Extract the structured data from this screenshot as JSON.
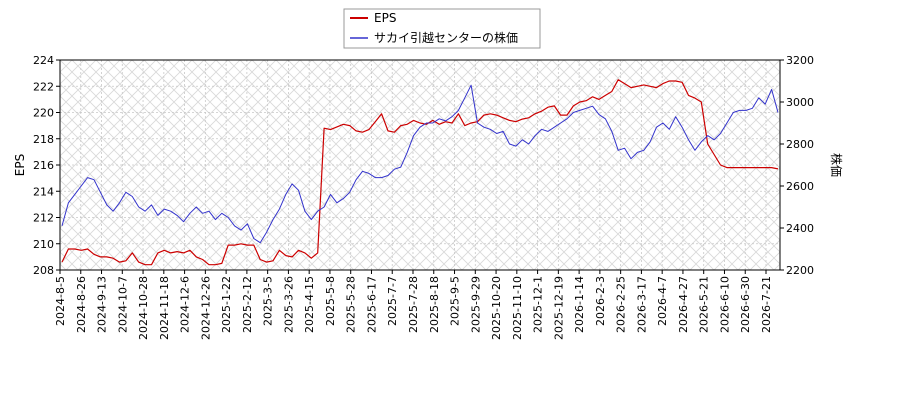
{
  "chart_data": {
    "type": "line",
    "title": "",
    "legend": {
      "placement": "top-center",
      "entries": [
        {
          "name": "EPS",
          "color": "#cc0000"
        },
        {
          "name": "サカイ引越センターの株価",
          "color": "#3333cc"
        }
      ]
    },
    "grid": true,
    "xlabel": "",
    "x_ticks": [
      "2024-8-5",
      "2024-8-26",
      "2024-9-13",
      "2024-10-7",
      "2024-10-28",
      "2024-11-18",
      "2024-12-6",
      "2024-12-26",
      "2025-1-22",
      "2025-2-12",
      "2025-3-5",
      "2025-3-26",
      "2025-4-15",
      "2025-5-8",
      "2025-5-28",
      "2025-6-17",
      "2025-7-7",
      "2025-7-28",
      "2025-8-18",
      "2025-9-5",
      "2025-9-29",
      "2025-10-20",
      "2025-11-10",
      "2025-12-1",
      "2025-12-19",
      "2026-1-14",
      "2026-2-3",
      "2026-2-25",
      "2026-3-17",
      "2026-4-7",
      "2026-4-27",
      "2026-5-21",
      "2026-6-10",
      "2026-6-30",
      "2026-7-21"
    ],
    "y_left": {
      "label": "EPS",
      "lim": [
        208,
        224
      ],
      "ticks": [
        208,
        210,
        212,
        214,
        216,
        218,
        220,
        222,
        224
      ]
    },
    "y_right": {
      "label": "株価",
      "lim": [
        2200,
        3200
      ],
      "ticks": [
        2200,
        2400,
        2600,
        2800,
        3000,
        3200
      ]
    },
    "series": [
      {
        "name": "EPS",
        "axis": "left",
        "color": "#cc0000",
        "values": [
          208.6,
          209.6,
          209.6,
          209.5,
          209.6,
          209.2,
          209.0,
          209.0,
          208.9,
          208.6,
          208.7,
          209.3,
          208.6,
          208.4,
          208.4,
          209.3,
          209.5,
          209.3,
          209.4,
          209.3,
          209.5,
          209.0,
          208.8,
          208.4,
          208.4,
          208.5,
          209.9,
          209.9,
          210.0,
          209.9,
          209.9,
          208.8,
          208.6,
          208.7,
          209.5,
          209.1,
          209.0,
          209.5,
          209.3,
          208.9,
          209.3,
          218.8,
          218.7,
          218.9,
          219.1,
          219.0,
          218.6,
          218.5,
          218.7,
          219.3,
          219.9,
          218.6,
          218.5,
          219.0,
          219.1,
          219.4,
          219.2,
          219.1,
          219.4,
          219.1,
          219.3,
          219.2,
          219.9,
          219.0,
          219.2,
          219.3,
          219.8,
          219.9,
          219.8,
          219.6,
          219.4,
          219.3,
          219.5,
          219.6,
          219.9,
          220.1,
          220.4,
          220.5,
          219.8,
          219.8,
          220.5,
          220.8,
          220.9,
          221.2,
          221.0,
          221.3,
          221.6,
          222.5,
          222.2,
          221.9,
          222.0,
          222.1,
          222.0,
          221.9,
          222.2,
          222.4,
          222.4,
          222.3,
          221.3,
          221.1,
          220.8,
          217.6,
          216.8,
          216.0,
          215.8,
          215.8,
          215.8,
          215.8,
          215.8,
          215.8,
          215.8,
          215.8,
          215.7
        ]
      },
      {
        "name": "サカイ引越センターの株価",
        "axis": "right",
        "color": "#3333cc",
        "values": [
          2410,
          2520,
          2560,
          2600,
          2640,
          2630,
          2570,
          2510,
          2480,
          2520,
          2570,
          2550,
          2500,
          2480,
          2510,
          2460,
          2490,
          2480,
          2460,
          2430,
          2470,
          2500,
          2470,
          2480,
          2440,
          2470,
          2450,
          2410,
          2390,
          2420,
          2350,
          2330,
          2380,
          2440,
          2490,
          2560,
          2610,
          2580,
          2480,
          2440,
          2480,
          2500,
          2560,
          2520,
          2540,
          2570,
          2630,
          2670,
          2660,
          2640,
          2640,
          2650,
          2680,
          2690,
          2760,
          2840,
          2880,
          2900,
          2900,
          2920,
          2910,
          2930,
          2960,
          3020,
          3080,
          2900,
          2880,
          2870,
          2850,
          2860,
          2800,
          2790,
          2820,
          2800,
          2840,
          2870,
          2860,
          2880,
          2900,
          2920,
          2950,
          2960,
          2970,
          2980,
          2940,
          2920,
          2860,
          2770,
          2780,
          2730,
          2760,
          2770,
          2810,
          2880,
          2900,
          2870,
          2930,
          2880,
          2820,
          2770,
          2810,
          2840,
          2820,
          2850,
          2900,
          2950,
          2960,
          2960,
          2970,
          3020,
          2990,
          3060,
          2950
        ]
      }
    ]
  }
}
